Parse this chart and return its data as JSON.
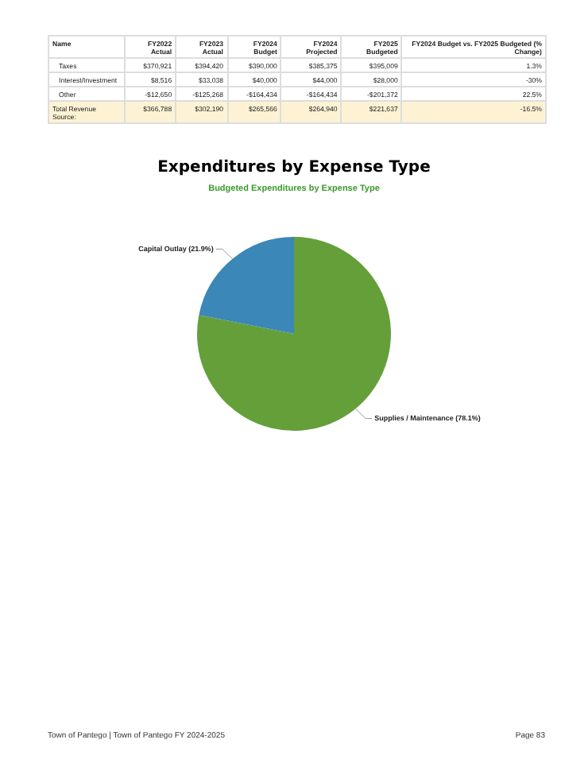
{
  "chart_data": [
    {
      "type": "other",
      "categories": [
        "Name",
        "FY2022 Actual",
        "FY2023 Actual",
        "FY2024 Budget",
        "FY2024 Projected",
        "FY2025 Budgeted",
        "FY2024 Budget vs. FY2025 Budgeted (% Change)"
      ],
      "annotations": [
        "Taxes",
        "$370,921",
        "$394,420",
        "$390,000",
        "$385,375",
        "$395,009",
        "1.3%",
        "Interest/Investment",
        "$8,516",
        "$33,038",
        "$40,000",
        "$44,000",
        "$28,000",
        "-30%",
        "Other",
        "-$12,650",
        "-$125,268",
        "-$164,434",
        "-$164,434",
        "-$201,372",
        "22.5%",
        "Total Revenue Source:",
        "$366,788",
        "$302,190",
        "$265,566",
        "$264,940",
        "$221,637",
        "-16.5%"
      ]
    },
    {
      "type": "pie",
      "title": "Expenditures by Expense Type",
      "subtitle": "Budgeted Expenditures by Expense Type",
      "categories": [
        "Supplies / Maintenance",
        "Capital Outlay"
      ],
      "values": [
        78.1,
        21.9
      ],
      "colors": [
        "#659f3a",
        "#3a87b8"
      ],
      "value_labels": [
        "(78.1%)",
        "(21.9%)"
      ],
      "legend": false,
      "annotations": [
        "Town of Pantego | Town of Pantego FY 2024-2025",
        "Page 83"
      ]
    }
  ]
}
